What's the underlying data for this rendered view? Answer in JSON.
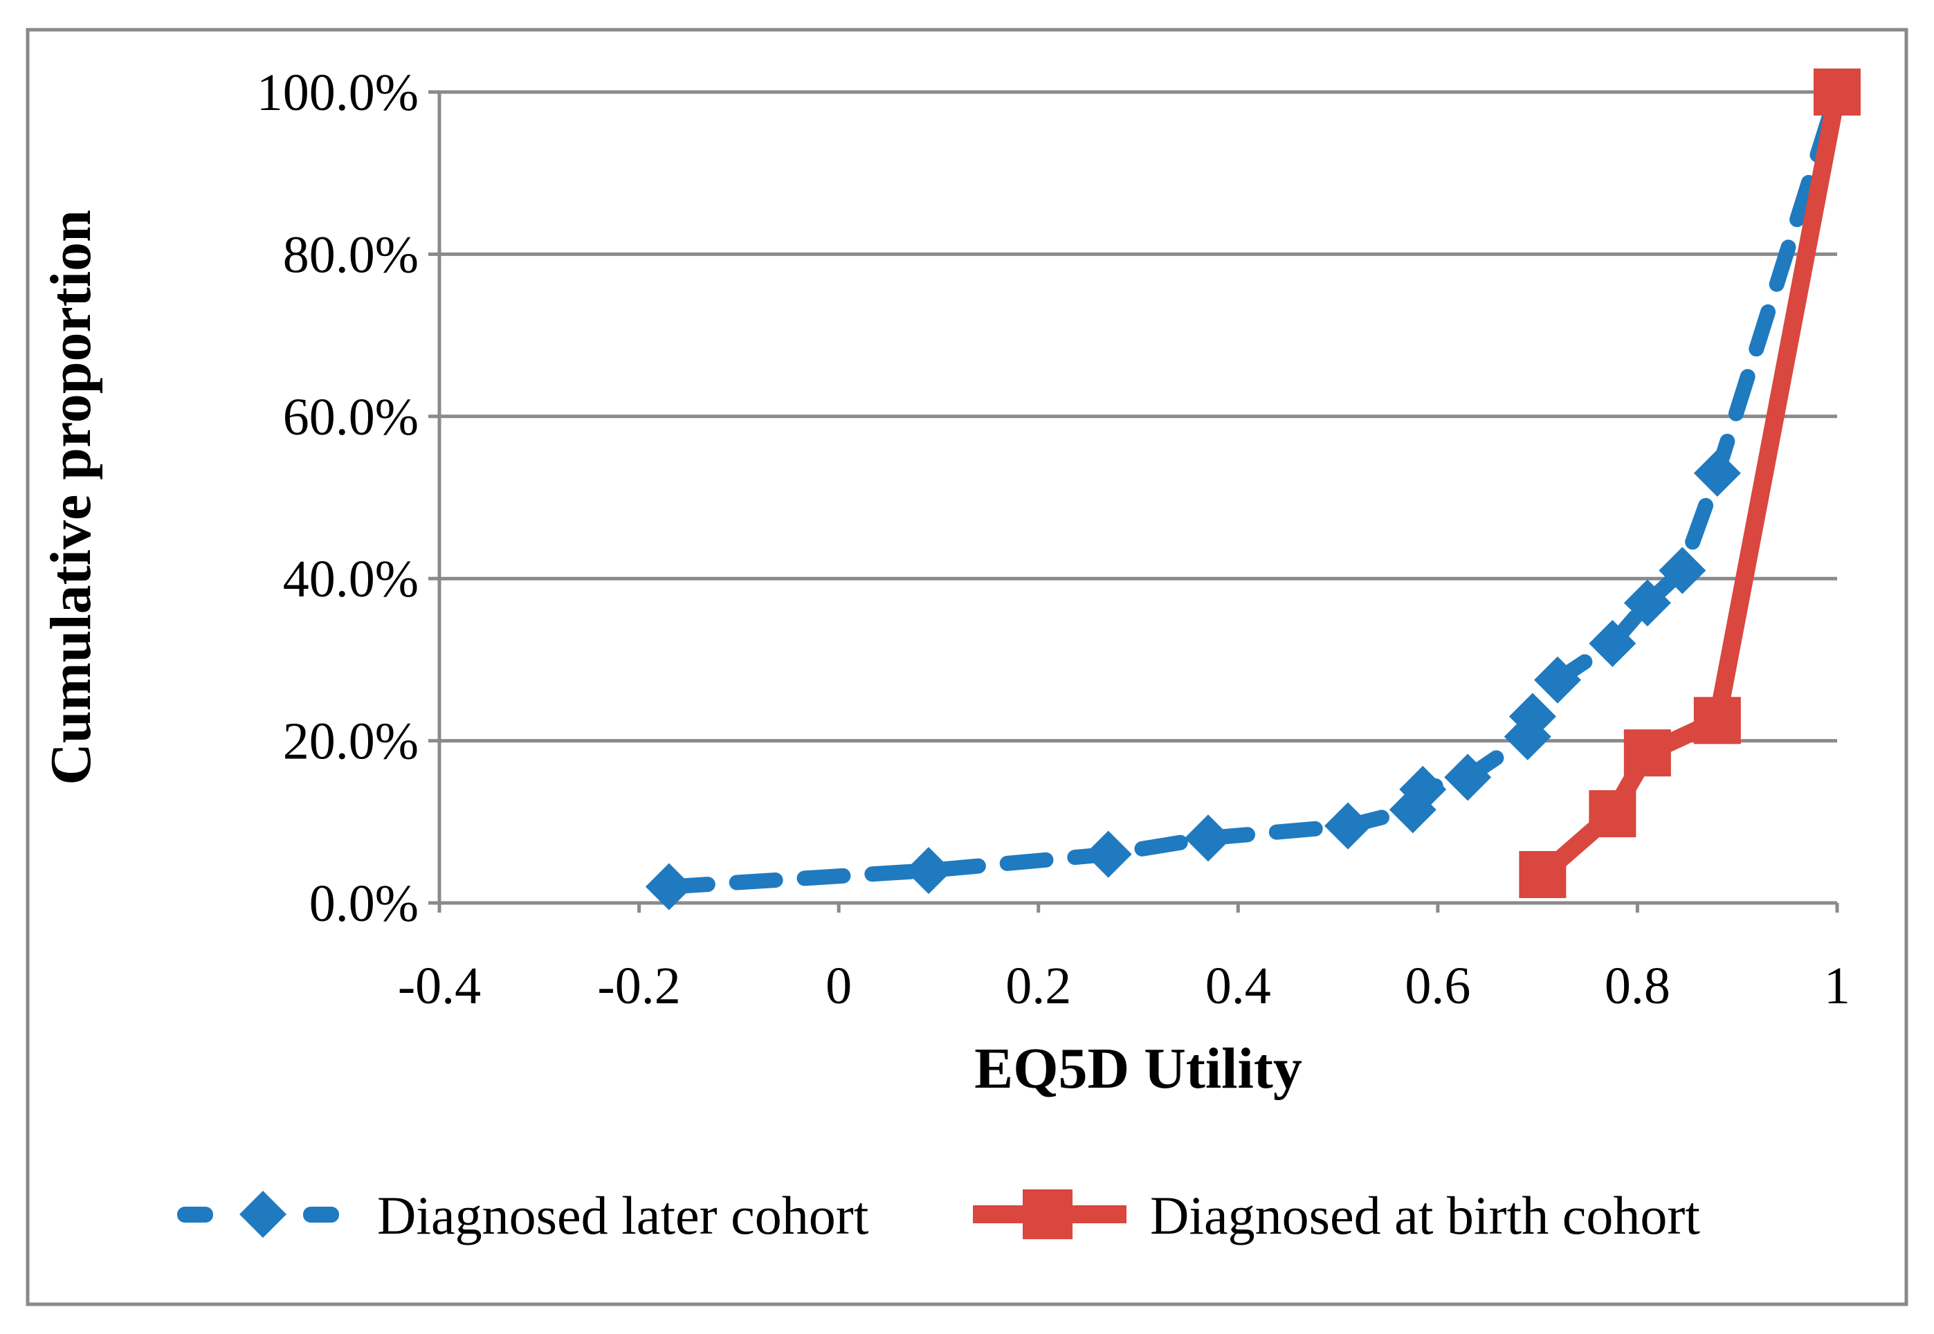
{
  "figure": {
    "border_color": "#8A8A8A",
    "grid_color": "#8A8A8A",
    "background": "#FFFFFF",
    "text_color": "#000000"
  },
  "chart_data": {
    "type": "line",
    "title": "",
    "xlabel": "EQ5D Utility",
    "ylabel": "Cumulative proportion",
    "xlim": [
      -0.4,
      1.0
    ],
    "ylim_pct": [
      0,
      100
    ],
    "grid": true,
    "legend_position": "bottom",
    "x_ticks": [
      {
        "label": "-0.4",
        "value": -0.4
      },
      {
        "label": "-0.2",
        "value": -0.2
      },
      {
        "label": "0",
        "value": 0
      },
      {
        "label": "0.2",
        "value": 0.2
      },
      {
        "label": "0.4",
        "value": 0.4
      },
      {
        "label": "0.6",
        "value": 0.6
      },
      {
        "label": "0.8",
        "value": 0.8
      },
      {
        "label": "1",
        "value": 1.0
      }
    ],
    "y_ticks": [
      {
        "label": "0.0%",
        "value": 0
      },
      {
        "label": "20.0%",
        "value": 20
      },
      {
        "label": "40.0%",
        "value": 40
      },
      {
        "label": "60.0%",
        "value": 60
      },
      {
        "label": "80.0%",
        "value": 80
      },
      {
        "label": "100.0%",
        "value": 100
      }
    ],
    "series": [
      {
        "name": "Diagnosed later cohort",
        "color": "#1F7AC0",
        "marker": "diamond",
        "line_style": "dashed",
        "points": [
          [
            -0.17,
            2
          ],
          [
            0.09,
            4
          ],
          [
            0.27,
            6
          ],
          [
            0.37,
            8
          ],
          [
            0.51,
            9.5
          ],
          [
            0.575,
            11.5
          ],
          [
            0.585,
            14
          ],
          [
            0.63,
            15.5
          ],
          [
            0.69,
            20.5
          ],
          [
            0.695,
            23
          ],
          [
            0.72,
            27.5
          ],
          [
            0.775,
            32
          ],
          [
            0.81,
            37
          ],
          [
            0.845,
            41
          ],
          [
            0.88,
            53
          ],
          [
            1.0,
            100
          ]
        ]
      },
      {
        "name": "Diagnosed at birth cohort",
        "color": "#D9473F",
        "marker": "square",
        "line_style": "solid",
        "points": [
          [
            0.705,
            3.5
          ],
          [
            0.775,
            11
          ],
          [
            0.81,
            18.5
          ],
          [
            0.88,
            22.5
          ],
          [
            1.0,
            100
          ]
        ]
      }
    ]
  }
}
